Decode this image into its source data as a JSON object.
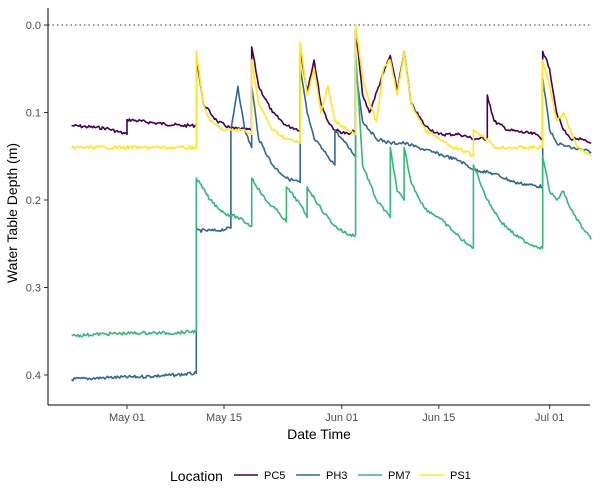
{
  "chart_data": {
    "type": "line",
    "xlabel": "Date Time",
    "ylabel": "Water Table Depth (m)",
    "x_ticks": [
      "May 01",
      "May 15",
      "Jun 01",
      "Jun 15",
      "Jul 01"
    ],
    "x_tick_dates": [
      "2021-05-01",
      "2021-05-15",
      "2021-06-01",
      "2021-06-15",
      "2021-07-01"
    ],
    "xlim": [
      "2021-04-23",
      "2021-07-07"
    ],
    "y_ticks": [
      "0.0",
      "0.1",
      "0.2",
      "0.3",
      "0.4"
    ],
    "y_tick_values": [
      0.0,
      0.1,
      0.2,
      0.3,
      0.4
    ],
    "ylim": [
      0.0,
      0.4
    ],
    "y_reversed": true,
    "reference_line": {
      "y": 0.0,
      "style": "dotted"
    },
    "legend_title": "Location",
    "legend_position": "bottom",
    "grid": false,
    "series": [
      {
        "name": "PC5",
        "color": "#440154",
        "points": [
          [
            "2021-04-23",
            0.115
          ],
          [
            "2021-04-28",
            0.118
          ],
          [
            "2021-05-01",
            0.125
          ],
          [
            "2021-05-01",
            0.108
          ],
          [
            "2021-05-05",
            0.112
          ],
          [
            "2021-05-09",
            0.115
          ],
          [
            "2021-05-11",
            0.115
          ],
          [
            "2021-05-11",
            0.035
          ],
          [
            "2021-05-12",
            0.09
          ],
          [
            "2021-05-14",
            0.11
          ],
          [
            "2021-05-16",
            0.118
          ],
          [
            "2021-05-19",
            0.12
          ],
          [
            "2021-05-19",
            0.025
          ],
          [
            "2021-05-20",
            0.07
          ],
          [
            "2021-05-22",
            0.1
          ],
          [
            "2021-05-24",
            0.115
          ],
          [
            "2021-05-26",
            0.12
          ],
          [
            "2021-05-26",
            0.03
          ],
          [
            "2021-05-27",
            0.075
          ],
          [
            "2021-05-28",
            0.04
          ],
          [
            "2021-05-29",
            0.09
          ],
          [
            "2021-05-30",
            0.11
          ],
          [
            "2021-05-31",
            0.12
          ],
          [
            "2021-06-02",
            0.125
          ],
          [
            "2021-06-03",
            0.12
          ],
          [
            "2021-06-03",
            0.005
          ],
          [
            "2021-06-04",
            0.08
          ],
          [
            "2021-06-05",
            0.1
          ],
          [
            "2021-06-07",
            0.055
          ],
          [
            "2021-06-08",
            0.035
          ],
          [
            "2021-06-09",
            0.075
          ],
          [
            "2021-06-10",
            0.03
          ],
          [
            "2021-06-11",
            0.09
          ],
          [
            "2021-06-13",
            0.115
          ],
          [
            "2021-06-15",
            0.125
          ],
          [
            "2021-06-18",
            0.125
          ],
          [
            "2021-06-20",
            0.13
          ],
          [
            "2021-06-22",
            0.13
          ],
          [
            "2021-06-22",
            0.08
          ],
          [
            "2021-06-23",
            0.11
          ],
          [
            "2021-06-25",
            0.12
          ],
          [
            "2021-06-29",
            0.125
          ],
          [
            "2021-06-30",
            0.13
          ],
          [
            "2021-06-30",
            0.03
          ],
          [
            "2021-07-01",
            0.05
          ],
          [
            "2021-07-02",
            0.1
          ],
          [
            "2021-07-03",
            0.12
          ],
          [
            "2021-07-04",
            0.13
          ],
          [
            "2021-07-05",
            0.13
          ],
          [
            "2021-07-07",
            0.135
          ]
        ]
      },
      {
        "name": "PH3",
        "color": "#31688e",
        "points": [
          [
            "2021-04-23",
            0.405
          ],
          [
            "2021-04-28",
            0.403
          ],
          [
            "2021-05-03",
            0.402
          ],
          [
            "2021-05-08",
            0.4
          ],
          [
            "2021-05-11",
            0.398
          ],
          [
            "2021-05-11",
            0.235
          ],
          [
            "2021-05-14",
            0.235
          ],
          [
            "2021-05-16",
            0.232
          ],
          [
            "2021-05-16",
            0.12
          ],
          [
            "2021-05-17",
            0.07
          ],
          [
            "2021-05-18",
            0.12
          ],
          [
            "2021-05-19",
            0.14
          ],
          [
            "2021-05-19",
            0.07
          ],
          [
            "2021-05-20",
            0.13
          ],
          [
            "2021-05-22",
            0.16
          ],
          [
            "2021-05-24",
            0.175
          ],
          [
            "2021-05-26",
            0.18
          ],
          [
            "2021-05-26",
            0.05
          ],
          [
            "2021-05-27",
            0.1
          ],
          [
            "2021-05-28",
            0.13
          ],
          [
            "2021-05-30",
            0.15
          ],
          [
            "2021-05-31",
            0.16
          ],
          [
            "2021-05-31",
            0.12
          ],
          [
            "2021-06-01",
            0.13
          ],
          [
            "2021-06-03",
            0.15
          ],
          [
            "2021-06-03",
            0.05
          ],
          [
            "2021-06-04",
            0.11
          ],
          [
            "2021-06-06",
            0.13
          ],
          [
            "2021-06-08",
            0.135
          ],
          [
            "2021-06-10",
            0.135
          ],
          [
            "2021-06-12",
            0.14
          ],
          [
            "2021-06-14",
            0.145
          ],
          [
            "2021-06-16",
            0.15
          ],
          [
            "2021-06-18",
            0.155
          ],
          [
            "2021-06-20",
            0.165
          ],
          [
            "2021-06-23",
            0.17
          ],
          [
            "2021-06-26",
            0.18
          ],
          [
            "2021-06-30",
            0.185
          ],
          [
            "2021-06-30",
            0.06
          ],
          [
            "2021-07-01",
            0.12
          ],
          [
            "2021-07-02",
            0.135
          ],
          [
            "2021-07-04",
            0.14
          ],
          [
            "2021-07-07",
            0.145
          ]
        ]
      },
      {
        "name": "PM7",
        "color": "#35b779",
        "points": [
          [
            "2021-04-23",
            0.355
          ],
          [
            "2021-04-28",
            0.353
          ],
          [
            "2021-05-03",
            0.352
          ],
          [
            "2021-05-08",
            0.352
          ],
          [
            "2021-05-11",
            0.35
          ],
          [
            "2021-05-11",
            0.175
          ],
          [
            "2021-05-13",
            0.2
          ],
          [
            "2021-05-15",
            0.215
          ],
          [
            "2021-05-17",
            0.22
          ],
          [
            "2021-05-19",
            0.23
          ],
          [
            "2021-05-19",
            0.175
          ],
          [
            "2021-05-21",
            0.2
          ],
          [
            "2021-05-23",
            0.215
          ],
          [
            "2021-05-24",
            0.225
          ],
          [
            "2021-05-24",
            0.185
          ],
          [
            "2021-05-26",
            0.205
          ],
          [
            "2021-05-27",
            0.22
          ],
          [
            "2021-05-27",
            0.185
          ],
          [
            "2021-05-29",
            0.21
          ],
          [
            "2021-05-31",
            0.23
          ],
          [
            "2021-06-02",
            0.24
          ],
          [
            "2021-06-03",
            0.24
          ],
          [
            "2021-06-03",
            0.03
          ],
          [
            "2021-06-04",
            0.16
          ],
          [
            "2021-06-06",
            0.2
          ],
          [
            "2021-06-08",
            0.22
          ],
          [
            "2021-06-08",
            0.14
          ],
          [
            "2021-06-09",
            0.19
          ],
          [
            "2021-06-10",
            0.2
          ],
          [
            "2021-06-10",
            0.14
          ],
          [
            "2021-06-11",
            0.18
          ],
          [
            "2021-06-13",
            0.21
          ],
          [
            "2021-06-15",
            0.22
          ],
          [
            "2021-06-17",
            0.235
          ],
          [
            "2021-06-19",
            0.25
          ],
          [
            "2021-06-20",
            0.255
          ],
          [
            "2021-06-20",
            0.16
          ],
          [
            "2021-06-22",
            0.2
          ],
          [
            "2021-06-24",
            0.225
          ],
          [
            "2021-06-26",
            0.24
          ],
          [
            "2021-06-28",
            0.25
          ],
          [
            "2021-06-30",
            0.255
          ],
          [
            "2021-06-30",
            0.15
          ],
          [
            "2021-07-01",
            0.19
          ],
          [
            "2021-07-02",
            0.2
          ],
          [
            "2021-07-03",
            0.19
          ],
          [
            "2021-07-04",
            0.21
          ],
          [
            "2021-07-06",
            0.235
          ],
          [
            "2021-07-07",
            0.245
          ]
        ]
      },
      {
        "name": "PS1",
        "color": "#fde725",
        "points": [
          [
            "2021-04-23",
            0.14
          ],
          [
            "2021-04-28",
            0.14
          ],
          [
            "2021-05-03",
            0.14
          ],
          [
            "2021-05-08",
            0.14
          ],
          [
            "2021-05-11",
            0.14
          ],
          [
            "2021-05-11",
            0.03
          ],
          [
            "2021-05-12",
            0.09
          ],
          [
            "2021-05-13",
            0.11
          ],
          [
            "2021-05-15",
            0.12
          ],
          [
            "2021-05-18",
            0.12
          ],
          [
            "2021-05-19",
            0.125
          ],
          [
            "2021-05-19",
            0.04
          ],
          [
            "2021-05-20",
            0.09
          ],
          [
            "2021-05-22",
            0.12
          ],
          [
            "2021-05-24",
            0.13
          ],
          [
            "2021-05-26",
            0.135
          ],
          [
            "2021-05-26",
            0.02
          ],
          [
            "2021-05-27",
            0.08
          ],
          [
            "2021-05-28",
            0.05
          ],
          [
            "2021-05-29",
            0.1
          ],
          [
            "2021-05-30",
            0.07
          ],
          [
            "2021-05-31",
            0.11
          ],
          [
            "2021-06-02",
            0.12
          ],
          [
            "2021-06-03",
            0.125
          ],
          [
            "2021-06-03",
            0.0
          ],
          [
            "2021-06-04",
            0.06
          ],
          [
            "2021-06-05",
            0.09
          ],
          [
            "2021-06-06",
            0.11
          ],
          [
            "2021-06-07",
            0.05
          ],
          [
            "2021-06-08",
            0.04
          ],
          [
            "2021-06-09",
            0.08
          ],
          [
            "2021-06-10",
            0.03
          ],
          [
            "2021-06-11",
            0.09
          ],
          [
            "2021-06-13",
            0.12
          ],
          [
            "2021-06-15",
            0.13
          ],
          [
            "2021-06-17",
            0.14
          ],
          [
            "2021-06-19",
            0.145
          ],
          [
            "2021-06-20",
            0.15
          ],
          [
            "2021-06-20",
            0.12
          ],
          [
            "2021-06-22",
            0.13
          ],
          [
            "2021-06-23",
            0.14
          ],
          [
            "2021-06-26",
            0.14
          ],
          [
            "2021-06-29",
            0.14
          ],
          [
            "2021-06-30",
            0.14
          ],
          [
            "2021-06-30",
            0.04
          ],
          [
            "2021-07-01",
            0.07
          ],
          [
            "2021-07-02",
            0.11
          ],
          [
            "2021-07-03",
            0.1
          ],
          [
            "2021-07-04",
            0.12
          ],
          [
            "2021-07-05",
            0.14
          ],
          [
            "2021-07-07",
            0.15
          ]
        ]
      }
    ]
  }
}
